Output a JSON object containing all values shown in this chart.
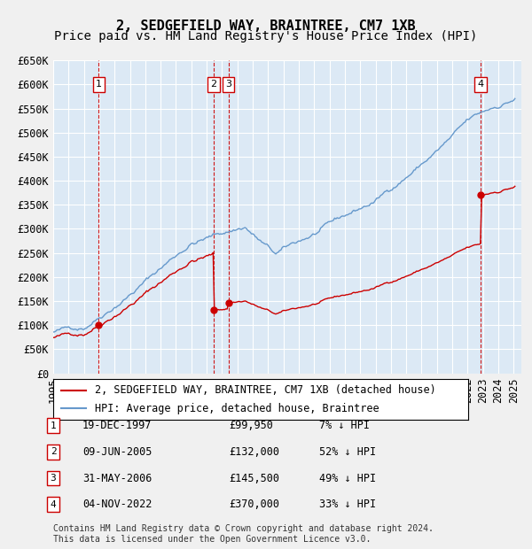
{
  "title": "2, SEDGEFIELD WAY, BRAINTREE, CM7 1XB",
  "subtitle": "Price paid vs. HM Land Registry's House Price Index (HPI)",
  "xlabel": "",
  "ylabel": "",
  "ylim": [
    0,
    650000
  ],
  "yticks": [
    0,
    50000,
    100000,
    150000,
    200000,
    250000,
    300000,
    350000,
    400000,
    450000,
    500000,
    550000,
    600000,
    650000
  ],
  "ytick_labels": [
    "£0",
    "£50K",
    "£100K",
    "£150K",
    "£200K",
    "£250K",
    "£300K",
    "£350K",
    "£400K",
    "£450K",
    "£500K",
    "£550K",
    "£600K",
    "£650K"
  ],
  "x_start_year": 1995,
  "x_end_year": 2025,
  "background_color": "#dce9f5",
  "plot_bg_color": "#dce9f5",
  "grid_color": "#ffffff",
  "hpi_line_color": "#6699cc",
  "price_line_color": "#cc0000",
  "sale_marker_color": "#cc0000",
  "vline_color": "#cc0000",
  "transactions": [
    {
      "label": "1",
      "date_num": 1997.97,
      "price": 99950,
      "text": "19-DEC-1997",
      "amount": "£99,950",
      "pct": "7% ↓ HPI"
    },
    {
      "label": "2",
      "date_num": 2005.44,
      "price": 132000,
      "text": "09-JUN-2005",
      "amount": "£132,000",
      "pct": "52% ↓ HPI"
    },
    {
      "label": "3",
      "date_num": 2006.41,
      "price": 145500,
      "text": "31-MAY-2006",
      "amount": "£145,500",
      "pct": "49% ↓ HPI"
    },
    {
      "label": "4",
      "date_num": 2022.84,
      "price": 370000,
      "text": "04-NOV-2022",
      "amount": "£370,000",
      "pct": "33% ↓ HPI"
    }
  ],
  "legend_line1": "2, SEDGEFIELD WAY, BRAINTREE, CM7 1XB (detached house)",
  "legend_line2": "HPI: Average price, detached house, Braintree",
  "footer": "Contains HM Land Registry data © Crown copyright and database right 2024.\nThis data is licensed under the Open Government Licence v3.0.",
  "title_fontsize": 11,
  "subtitle_fontsize": 10,
  "tick_fontsize": 8.5,
  "legend_fontsize": 8.5,
  "table_fontsize": 8.5,
  "footer_fontsize": 7
}
